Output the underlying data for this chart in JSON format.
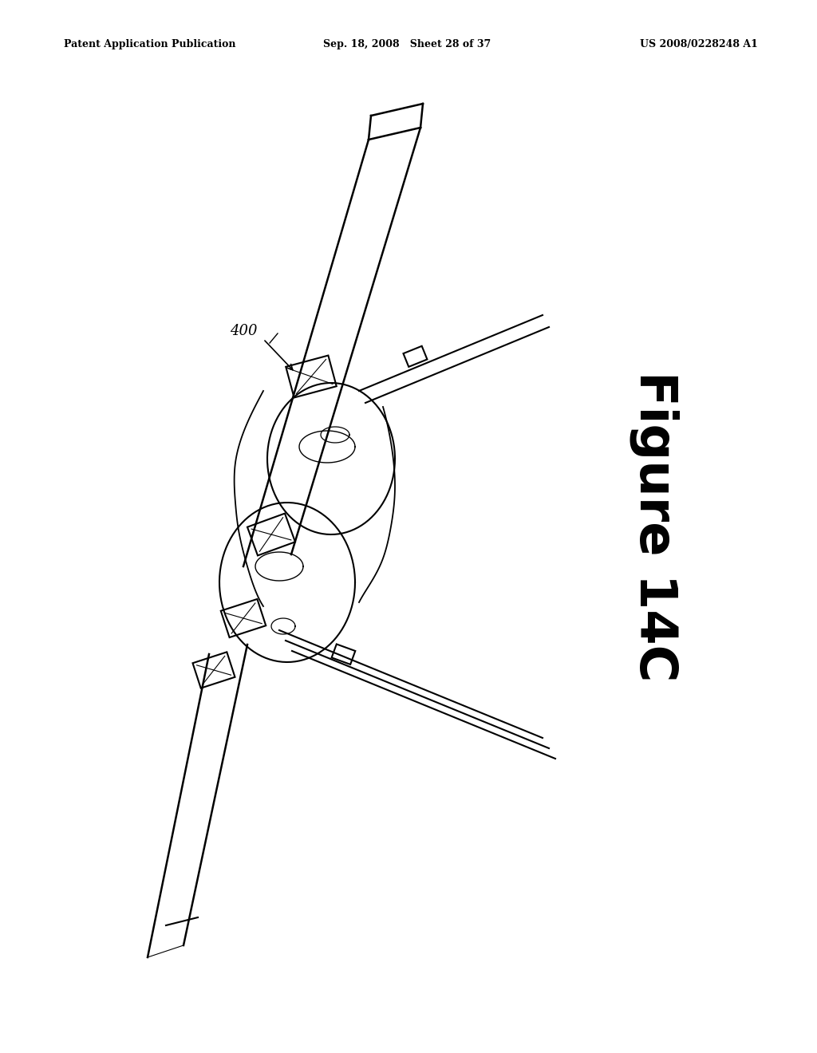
{
  "background_color": "#ffffff",
  "header_left": "Patent Application Publication",
  "header_center": "Sep. 18, 2008   Sheet 28 of 37",
  "header_right": "US 2008/0228248 A1",
  "figure_label": "Figure 14C",
  "ref_label": "400",
  "figure_width": 10.24,
  "figure_height": 13.2
}
